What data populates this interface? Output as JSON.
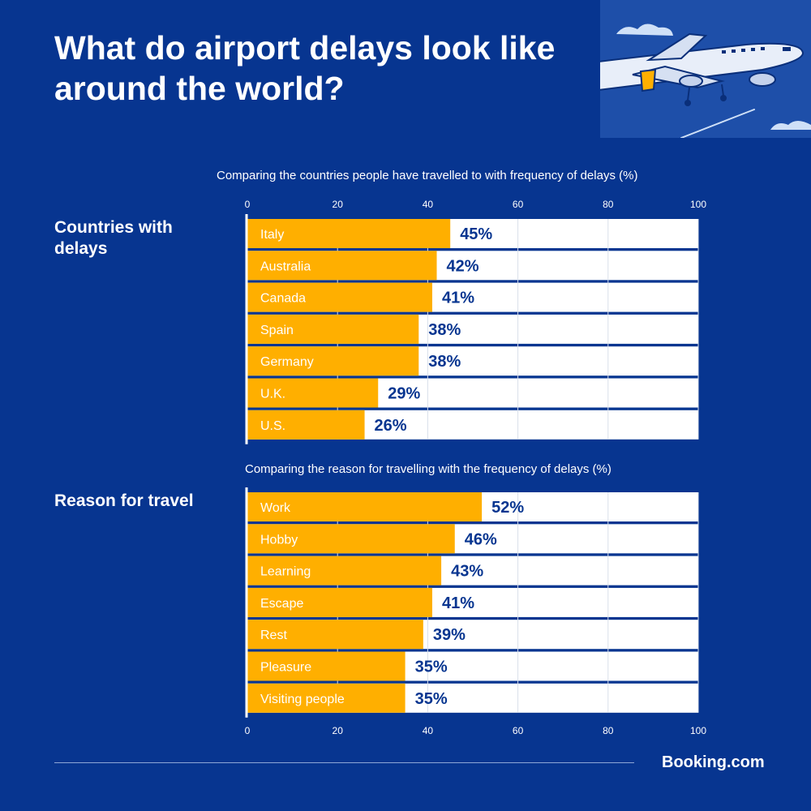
{
  "title": "What do airport delays look like around the world?",
  "brand": "Booking.com",
  "colors": {
    "background": "#073590",
    "bar": "#ffaf00",
    "track": "#ffffff",
    "value_text": "#073590"
  },
  "illustration": {
    "icon": "airplane-icon"
  },
  "chart_data": [
    {
      "type": "bar",
      "orientation": "horizontal",
      "section_label": "Countries with delays",
      "title": "Comparing the countries people have travelled to with frequency of delays (%)",
      "categories": [
        "Italy",
        "Australia",
        "Canada",
        "Spain",
        "Germany",
        "U.K.",
        "U.S."
      ],
      "values": [
        45,
        42,
        41,
        38,
        38,
        29,
        26
      ],
      "value_labels": [
        "45%",
        "42%",
        "41%",
        "38%",
        "38%",
        "29%",
        "26%"
      ],
      "xlim": [
        0,
        100
      ],
      "ticks": [
        0,
        20,
        40,
        60,
        80,
        100
      ],
      "tick_position": "top",
      "grid": true
    },
    {
      "type": "bar",
      "orientation": "horizontal",
      "section_label": "Reason for travel",
      "title": "Comparing the reason for travelling with the frequency of delays (%)",
      "categories": [
        "Work",
        "Hobby",
        "Learning",
        "Escape",
        "Rest",
        "Pleasure",
        "Visiting people"
      ],
      "values": [
        52,
        46,
        43,
        41,
        39,
        35,
        35
      ],
      "value_labels": [
        "52%",
        "46%",
        "43%",
        "41%",
        "39%",
        "35%",
        "35%"
      ],
      "xlim": [
        0,
        100
      ],
      "ticks": [
        0,
        20,
        40,
        60,
        80,
        100
      ],
      "tick_position": "bottom",
      "grid": true
    }
  ]
}
